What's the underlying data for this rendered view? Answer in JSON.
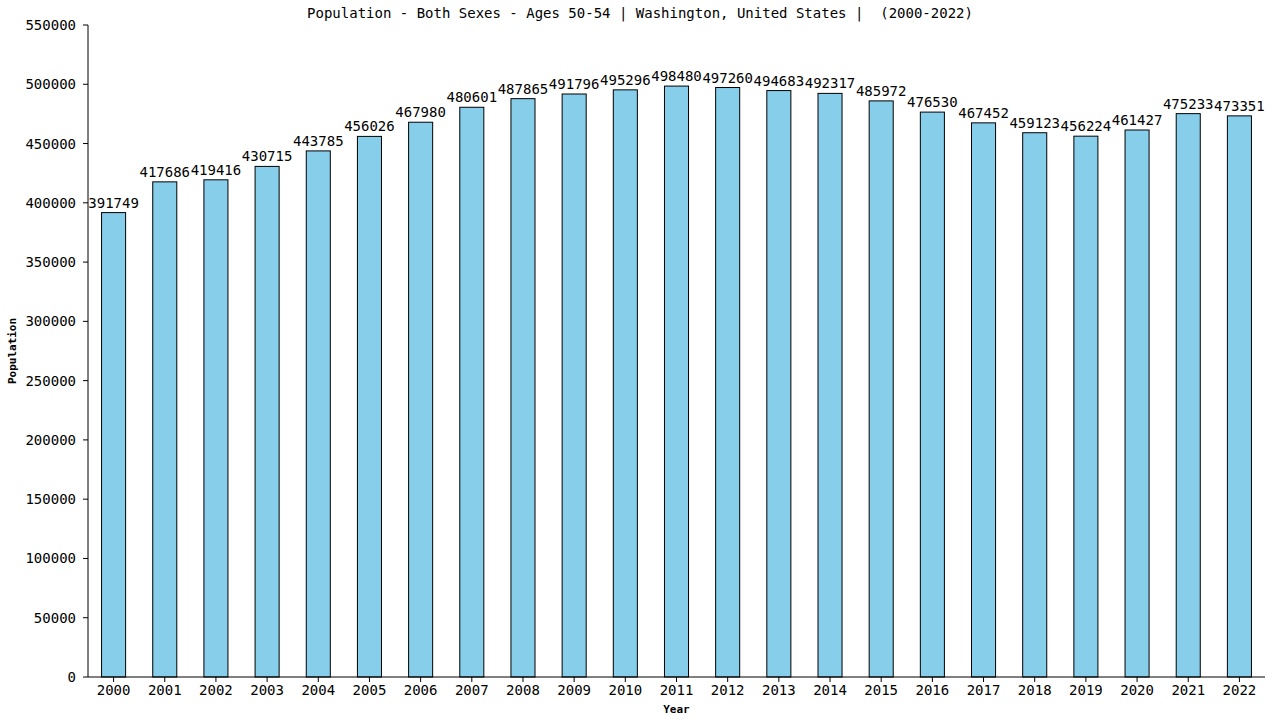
{
  "chart_data": {
    "type": "bar",
    "title": "Population - Both Sexes - Ages 50-54 | Washington, United States |  (2000-2022)",
    "x_label": "Year",
    "y_label": "Population",
    "categories": [
      "2000",
      "2001",
      "2002",
      "2003",
      "2004",
      "2005",
      "2006",
      "2007",
      "2008",
      "2009",
      "2010",
      "2011",
      "2012",
      "2013",
      "2014",
      "2015",
      "2016",
      "2017",
      "2018",
      "2019",
      "2020",
      "2021",
      "2022"
    ],
    "values": [
      391749,
      417686,
      419416,
      430715,
      443785,
      456026,
      467980,
      480601,
      487865,
      491796,
      495296,
      498480,
      497260,
      494683,
      492317,
      485972,
      476530,
      467452,
      459123,
      456224,
      461427,
      475233,
      473351
    ],
    "color": "#87ceeb",
    "ylim": [
      0,
      550000
    ],
    "yticks": [
      0,
      50000,
      100000,
      150000,
      200000,
      250000,
      300000,
      350000,
      400000,
      450000,
      500000,
      550000
    ],
    "grid": false,
    "data_labels": true
  }
}
